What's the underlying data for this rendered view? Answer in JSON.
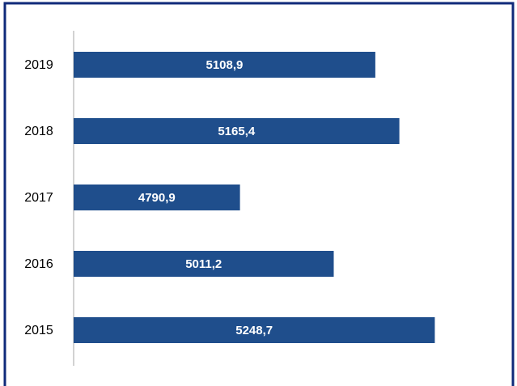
{
  "chart_data": {
    "type": "bar",
    "orientation": "horizontal",
    "categories": [
      "2019",
      "2018",
      "2017",
      "2016",
      "2015"
    ],
    "values": [
      5108.9,
      5165.4,
      4790.9,
      5011.2,
      5248.7
    ],
    "value_labels": [
      "5108,9",
      "5165,4",
      "4790,9",
      "5011,2",
      "5248,7"
    ],
    "color": "#1f4e8c",
    "xlim": [
      4400,
      5400
    ]
  }
}
